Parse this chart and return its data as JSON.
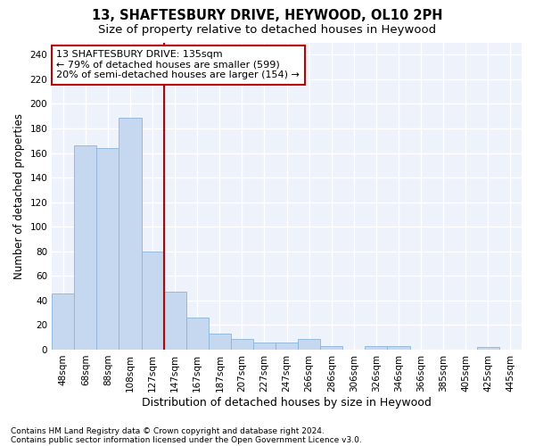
{
  "title": "13, SHAFTESBURY DRIVE, HEYWOOD, OL10 2PH",
  "subtitle": "Size of property relative to detached houses in Heywood",
  "xlabel": "Distribution of detached houses by size in Heywood",
  "ylabel": "Number of detached properties",
  "bar_color": "#c5d8f0",
  "bar_edge_color": "#8ab4d8",
  "categories": [
    "48sqm",
    "68sqm",
    "88sqm",
    "108sqm",
    "127sqm",
    "147sqm",
    "167sqm",
    "187sqm",
    "207sqm",
    "227sqm",
    "247sqm",
    "266sqm",
    "286sqm",
    "306sqm",
    "326sqm",
    "346sqm",
    "366sqm",
    "385sqm",
    "405sqm",
    "425sqm",
    "445sqm"
  ],
  "values": [
    46,
    166,
    164,
    189,
    80,
    47,
    26,
    13,
    9,
    6,
    6,
    9,
    3,
    0,
    3,
    3,
    0,
    0,
    0,
    2,
    0
  ],
  "vline_x": 4.5,
  "vline_color": "#c00000",
  "annotation_line1": "13 SHAFTESBURY DRIVE: 135sqm",
  "annotation_line2": "← 79% of detached houses are smaller (599)",
  "annotation_line3": "20% of semi-detached houses are larger (154) →",
  "annotation_box_color": "#ffffff",
  "annotation_box_edge": "#c00000",
  "ylim": [
    0,
    250
  ],
  "yticks": [
    0,
    20,
    40,
    60,
    80,
    100,
    120,
    140,
    160,
    180,
    200,
    220,
    240
  ],
  "background_color": "#eef2fb",
  "grid_color": "#ffffff",
  "footer1": "Contains HM Land Registry data © Crown copyright and database right 2024.",
  "footer2": "Contains public sector information licensed under the Open Government Licence v3.0.",
  "title_fontsize": 10.5,
  "subtitle_fontsize": 9.5,
  "xlabel_fontsize": 9,
  "ylabel_fontsize": 8.5,
  "tick_fontsize": 7.5,
  "annotation_fontsize": 8,
  "footer_fontsize": 6.5
}
